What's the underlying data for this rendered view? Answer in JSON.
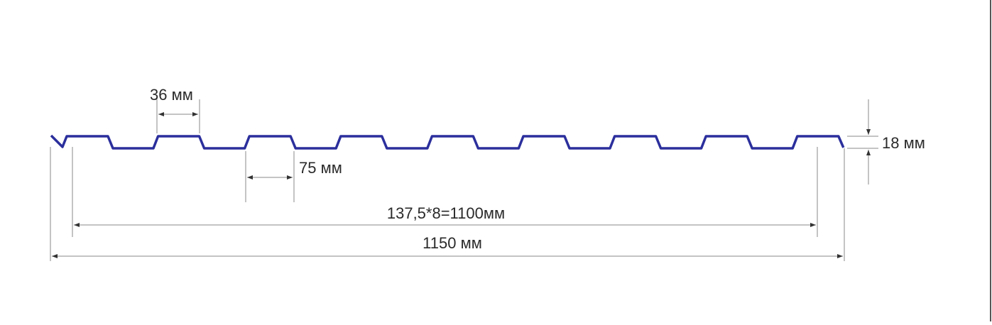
{
  "profile_color": "#2b2f9c",
  "dimension_color": "#8a8a8a",
  "labels": {
    "rib_top_width": "36 мм",
    "rib_bottom_width": "75 мм",
    "height": "18 мм",
    "useful_width": "137,5*8=1100мм",
    "total_width": "1150 мм"
  }
}
